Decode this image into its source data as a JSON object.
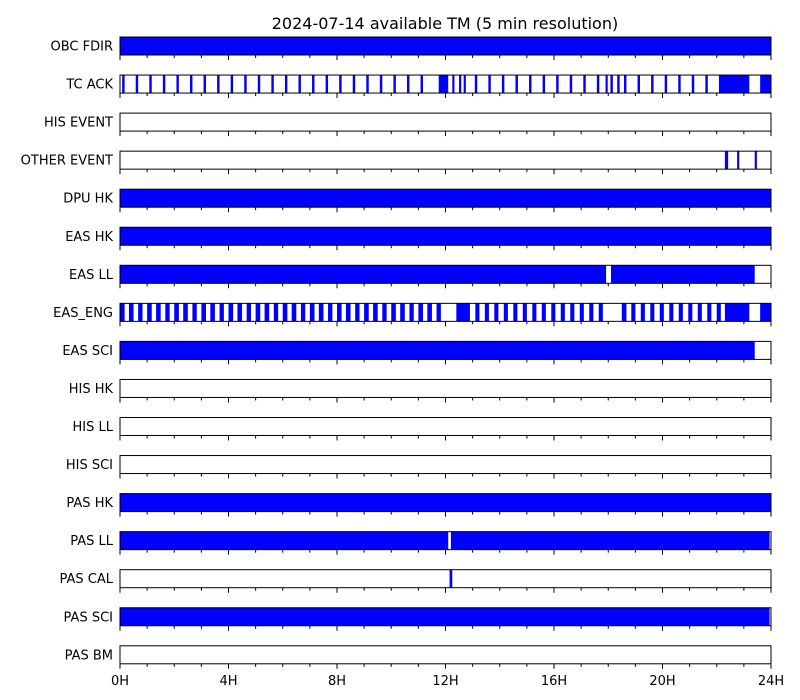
{
  "chart_data": {
    "type": "timeline",
    "title": "2024-07-14 available TM (5 min resolution)",
    "x_unit": "hours",
    "xlim": [
      0,
      24
    ],
    "x_ticks": [
      {
        "value": 0,
        "label": "0H"
      },
      {
        "value": 4,
        "label": "4H"
      },
      {
        "value": 8,
        "label": "8H"
      },
      {
        "value": 12,
        "label": "12H"
      },
      {
        "value": 16,
        "label": "16H"
      },
      {
        "value": 20,
        "label": "20H"
      },
      {
        "value": 24,
        "label": "24H"
      }
    ],
    "fill_color": "#0000ff",
    "rows": [
      {
        "name": "OBC FDIR",
        "intervals": [
          [
            0,
            24
          ]
        ]
      },
      {
        "name": "TC ACK",
        "intervals": [
          [
            0.08,
            0.17
          ],
          [
            0.58,
            0.67
          ],
          [
            1.08,
            1.17
          ],
          [
            1.58,
            1.67
          ],
          [
            2.08,
            2.17
          ],
          [
            2.58,
            2.67
          ],
          [
            3.08,
            3.17
          ],
          [
            3.58,
            3.67
          ],
          [
            4.08,
            4.17
          ],
          [
            4.58,
            4.67
          ],
          [
            5.08,
            5.17
          ],
          [
            5.58,
            5.67
          ],
          [
            6.08,
            6.17
          ],
          [
            6.58,
            6.67
          ],
          [
            7.08,
            7.17
          ],
          [
            7.58,
            7.67
          ],
          [
            8.08,
            8.17
          ],
          [
            8.58,
            8.67
          ],
          [
            9.08,
            9.17
          ],
          [
            9.58,
            9.67
          ],
          [
            10.08,
            10.17
          ],
          [
            10.58,
            10.67
          ],
          [
            11.08,
            11.17
          ],
          [
            11.75,
            12.1
          ],
          [
            12.25,
            12.33
          ],
          [
            12.5,
            12.58
          ],
          [
            12.67,
            12.75
          ],
          [
            13.08,
            13.17
          ],
          [
            13.58,
            13.67
          ],
          [
            14.08,
            14.17
          ],
          [
            14.58,
            14.67
          ],
          [
            15.08,
            15.17
          ],
          [
            15.58,
            15.67
          ],
          [
            16.08,
            16.17
          ],
          [
            16.58,
            16.67
          ],
          [
            17.08,
            17.17
          ],
          [
            17.58,
            17.67
          ],
          [
            17.9,
            17.98
          ],
          [
            18.08,
            18.17
          ],
          [
            18.33,
            18.42
          ],
          [
            18.58,
            18.67
          ],
          [
            19.08,
            19.17
          ],
          [
            19.58,
            19.67
          ],
          [
            20.08,
            20.17
          ],
          [
            20.58,
            20.67
          ],
          [
            21.08,
            21.17
          ],
          [
            21.58,
            21.67
          ],
          [
            22.08,
            23.2
          ],
          [
            23.6,
            24
          ]
        ]
      },
      {
        "name": "HIS EVENT",
        "intervals": []
      },
      {
        "name": "OTHER EVENT",
        "intervals": [
          [
            22.3,
            22.42
          ],
          [
            22.75,
            22.83
          ],
          [
            23.4,
            23.48
          ]
        ]
      },
      {
        "name": "DPU HK",
        "intervals": [
          [
            0,
            24
          ]
        ]
      },
      {
        "name": "EAS HK",
        "intervals": [
          [
            0,
            24
          ]
        ]
      },
      {
        "name": "EAS LL",
        "intervals": [
          [
            0,
            17.92
          ],
          [
            18.1,
            23.4
          ]
        ]
      },
      {
        "name": "EAS_ENG",
        "intervals": [
          [
            0,
            0.17
          ],
          [
            0.33,
            0.5
          ],
          [
            0.67,
            0.83
          ],
          [
            1,
            1.17
          ],
          [
            1.33,
            1.5
          ],
          [
            1.67,
            1.83
          ],
          [
            2,
            2.17
          ],
          [
            2.33,
            2.5
          ],
          [
            2.67,
            2.83
          ],
          [
            3,
            3.17
          ],
          [
            3.33,
            3.5
          ],
          [
            3.67,
            3.83
          ],
          [
            4,
            4.17
          ],
          [
            4.33,
            4.5
          ],
          [
            4.67,
            4.83
          ],
          [
            5,
            5.17
          ],
          [
            5.33,
            5.5
          ],
          [
            5.67,
            5.83
          ],
          [
            6,
            6.17
          ],
          [
            6.33,
            6.5
          ],
          [
            6.67,
            6.83
          ],
          [
            7,
            7.17
          ],
          [
            7.33,
            7.5
          ],
          [
            7.67,
            7.83
          ],
          [
            8,
            8.17
          ],
          [
            8.33,
            8.5
          ],
          [
            8.67,
            8.83
          ],
          [
            9,
            9.17
          ],
          [
            9.33,
            9.5
          ],
          [
            9.67,
            9.83
          ],
          [
            10,
            10.17
          ],
          [
            10.33,
            10.5
          ],
          [
            10.67,
            10.83
          ],
          [
            11,
            11.17
          ],
          [
            11.33,
            11.5
          ],
          [
            11.67,
            11.83
          ],
          [
            12.4,
            12.9
          ],
          [
            13.1,
            13.25
          ],
          [
            13.45,
            13.6
          ],
          [
            13.8,
            13.95
          ],
          [
            14.15,
            14.3
          ],
          [
            14.5,
            14.65
          ],
          [
            14.85,
            15
          ],
          [
            15.2,
            15.35
          ],
          [
            15.55,
            15.7
          ],
          [
            15.9,
            16.05
          ],
          [
            16.25,
            16.4
          ],
          [
            16.6,
            16.75
          ],
          [
            16.95,
            17.1
          ],
          [
            17.3,
            17.45
          ],
          [
            17.65,
            17.8
          ],
          [
            18.5,
            18.67
          ],
          [
            18.85,
            19
          ],
          [
            19.2,
            19.35
          ],
          [
            19.55,
            19.7
          ],
          [
            19.9,
            20.05
          ],
          [
            20.25,
            20.4
          ],
          [
            20.6,
            20.75
          ],
          [
            20.95,
            21.1
          ],
          [
            21.3,
            21.45
          ],
          [
            21.65,
            21.8
          ],
          [
            22,
            22.15
          ],
          [
            22.3,
            23.2
          ],
          [
            23.6,
            24
          ]
        ]
      },
      {
        "name": "EAS SCI",
        "intervals": [
          [
            0,
            23.4
          ]
        ]
      },
      {
        "name": "HIS HK",
        "intervals": []
      },
      {
        "name": "HIS LL",
        "intervals": []
      },
      {
        "name": "HIS SCI",
        "intervals": []
      },
      {
        "name": "PAS HK",
        "intervals": [
          [
            0,
            24
          ]
        ]
      },
      {
        "name": "PAS LL",
        "intervals": [
          [
            0,
            12.1
          ],
          [
            12.2,
            23.95
          ]
        ]
      },
      {
        "name": "PAS CAL",
        "intervals": [
          [
            12.15,
            12.25
          ]
        ]
      },
      {
        "name": "PAS SCI",
        "intervals": [
          [
            0,
            23.95
          ]
        ]
      },
      {
        "name": "PAS BM",
        "intervals": []
      }
    ]
  }
}
